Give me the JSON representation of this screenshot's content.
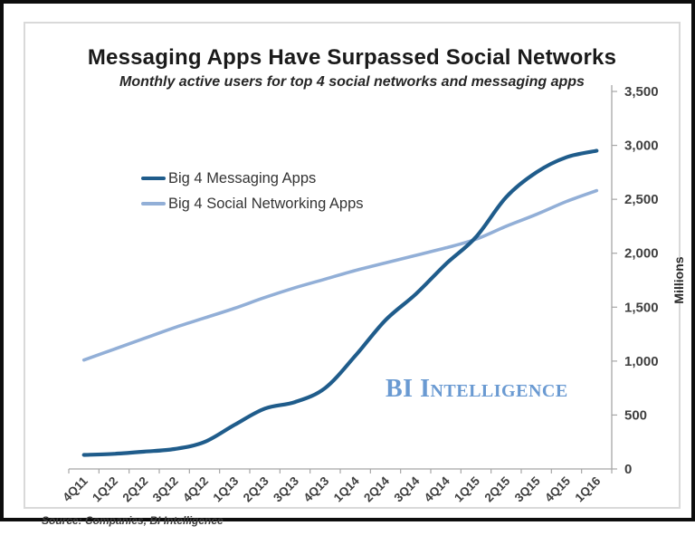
{
  "chart_data": {
    "type": "line",
    "title": "Messaging Apps Have Surpassed Social Networks",
    "subtitle": "Monthly active users for top 4 social networks and messaging apps",
    "categories": [
      "4Q11",
      "1Q12",
      "2Q12",
      "3Q12",
      "4Q12",
      "1Q13",
      "2Q13",
      "3Q13",
      "4Q13",
      "1Q14",
      "2Q14",
      "3Q14",
      "4Q14",
      "1Q15",
      "2Q15",
      "3Q15",
      "4Q15",
      "1Q16"
    ],
    "series": [
      {
        "name": "Big 4 Messaging Apps",
        "color": "#1F5C8B",
        "stroke_width": 4.2,
        "values": [
          130,
          140,
          160,
          185,
          250,
          410,
          560,
          620,
          750,
          1050,
          1380,
          1620,
          1900,
          2150,
          2520,
          2750,
          2890,
          2950
        ]
      },
      {
        "name": "Big 4 Social Networking Apps",
        "color": "#92AFD7",
        "stroke_width": 3.6,
        "values": [
          1010,
          1110,
          1210,
          1310,
          1400,
          1490,
          1590,
          1680,
          1760,
          1840,
          1910,
          1980,
          2050,
          2130,
          2250,
          2360,
          2480,
          2580
        ]
      }
    ],
    "xlabel": "",
    "ylabel": "Millions",
    "ylim": [
      0,
      3500
    ],
    "ytick_step": 500,
    "ytick_labels": [
      "0",
      "500",
      "1,000",
      "1,500",
      "2,000",
      "2,500",
      "3,000",
      "3,500"
    ],
    "y_axis_side": "right",
    "legend_position": "inside-top-left",
    "grid": false,
    "axis_color": "#a6a6a6",
    "tick_label_color": "#3f3f3f"
  },
  "watermark": {
    "text": "BI Intelligence",
    "color": "#6a9ad2"
  },
  "source": {
    "text": "Source: Companies, BI Intelligence"
  }
}
